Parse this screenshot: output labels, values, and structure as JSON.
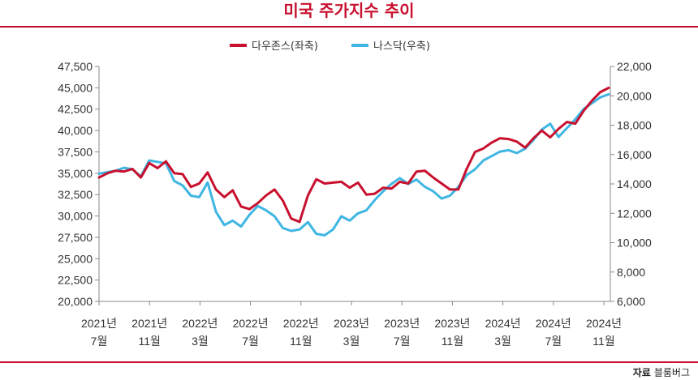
{
  "title": "미국 주가지수 추이",
  "source": {
    "label": "자료",
    "name": "블룸버그"
  },
  "colors": {
    "dow": "#c8102e",
    "nasdaq": "#3fb6e3",
    "axis": "#888888",
    "accent": "#c8102e"
  },
  "chart_data": {
    "type": "line",
    "title": "미국 주가지수 추이",
    "legend_position": "top-center",
    "grid": false,
    "x_ticks": [
      {
        "year": "2021년",
        "month": "7월"
      },
      {
        "year": "2021년",
        "month": "11월"
      },
      {
        "year": "2022년",
        "month": "3월"
      },
      {
        "year": "2022년",
        "month": "7월"
      },
      {
        "year": "2022년",
        "month": "11월"
      },
      {
        "year": "2023년",
        "month": "3월"
      },
      {
        "year": "2023년",
        "month": "7월"
      },
      {
        "year": "2023년",
        "month": "11월"
      },
      {
        "year": "2024년",
        "month": "3월"
      },
      {
        "year": "2024년",
        "month": "7월"
      },
      {
        "year": "2024년",
        "month": "11월"
      }
    ],
    "y_left": {
      "ticks": [
        "47,500",
        "45,000",
        "42,500",
        "40,000",
        "37,500",
        "35,000",
        "32,500",
        "30,000",
        "27,500",
        "25,000",
        "22,500",
        "20,000"
      ],
      "range": [
        20000,
        47500
      ]
    },
    "y_right": {
      "ticks": [
        "22,000",
        "20,000",
        "18,000",
        "16,000",
        "14,000",
        "12,000",
        "10,000",
        "8,000",
        "6,000"
      ],
      "range": [
        6000,
        22000
      ]
    },
    "series": [
      {
        "name": "다우존스(좌축)",
        "axis": "left",
        "values": [
          34500,
          35000,
          35300,
          35200,
          35500,
          34500,
          36200,
          35600,
          36400,
          35000,
          34900,
          33400,
          33800,
          35100,
          33100,
          32200,
          33000,
          31100,
          30800,
          31500,
          32400,
          33100,
          31800,
          29700,
          29300,
          32400,
          34300,
          33800,
          33900,
          34000,
          33300,
          33900,
          32500,
          32600,
          33300,
          33200,
          34000,
          33800,
          35200,
          35300,
          34500,
          33800,
          33100,
          33100,
          35500,
          37500,
          37900,
          38600,
          39100,
          39000,
          38700,
          38000,
          39100,
          40000,
          39200,
          40200,
          41000,
          40800,
          42300,
          43500,
          44500,
          45000
        ]
      },
      {
        "name": "나스닥(우축)",
        "axis": "right",
        "values": [
          14700,
          14800,
          14900,
          15100,
          15000,
          14500,
          15600,
          15500,
          15400,
          14200,
          13900,
          13200,
          13100,
          14100,
          12100,
          11200,
          11500,
          11100,
          11900,
          12500,
          12200,
          11800,
          11000,
          10800,
          10900,
          11400,
          10600,
          10500,
          10900,
          11800,
          11500,
          12000,
          12200,
          12900,
          13500,
          14000,
          14400,
          14000,
          14300,
          13800,
          13500,
          13000,
          13200,
          13800,
          14600,
          15000,
          15600,
          15900,
          16200,
          16300,
          16100,
          16400,
          17000,
          17700,
          18100,
          17200,
          17800,
          18400,
          19100,
          19500,
          19900,
          20100
        ]
      }
    ]
  }
}
